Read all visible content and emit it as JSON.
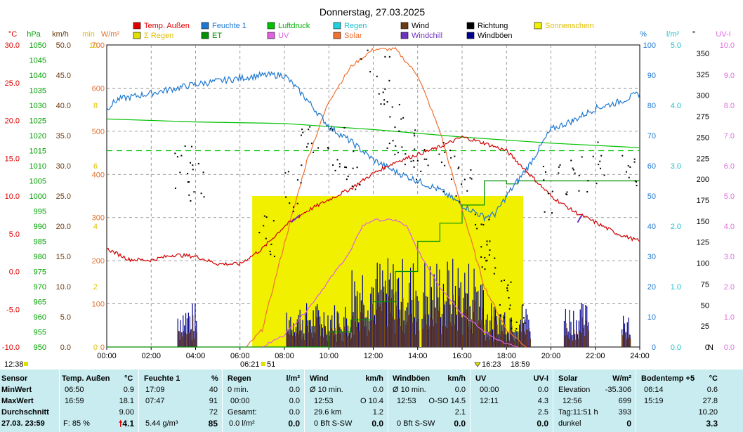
{
  "chart_data": {
    "type": "line",
    "title": "Donnerstag, 27.03.2025",
    "x_ticks": [
      "00:00",
      "02:00",
      "04:00",
      "06:00",
      "08:00",
      "10:00",
      "12:00",
      "14:00",
      "16:00",
      "18:00",
      "20:00",
      "22:00",
      "24:00"
    ],
    "legend": [
      {
        "name": "Temp. Außen",
        "color": "#e00000"
      },
      {
        "name": "Feuchte 1",
        "color": "#1e78d0"
      },
      {
        "name": "Luftdruck",
        "color": "#00c000"
      },
      {
        "name": "Regen",
        "color": "#20d0e0"
      },
      {
        "name": "Wind",
        "color": "#6b3a10"
      },
      {
        "name": "Richtung",
        "color": "#000000"
      },
      {
        "name": "Sonnenschein",
        "color": "#f0f000"
      },
      {
        "name": "Regen",
        "color": "#e0e000",
        "prefix": "Σ"
      },
      {
        "name": "ET",
        "color": "#009000"
      },
      {
        "name": "UV",
        "color": "#e060e0"
      },
      {
        "name": "Solar",
        "color": "#f07030"
      },
      {
        "name": "Windchill",
        "color": "#7030c0"
      },
      {
        "name": "Windböen",
        "color": "#000090"
      }
    ],
    "axes": {
      "temp": {
        "unit": "°C",
        "color": "#e00000",
        "ticks": [
          "30.0",
          "25.0",
          "20.0",
          "15.0",
          "10.0",
          "5.0",
          "0.0",
          "-5.0",
          "-10.0"
        ],
        "min": -10,
        "max": 30
      },
      "pressure": {
        "unit": "hPa",
        "color": "#00a000",
        "ticks": [
          "1050",
          "1045",
          "1040",
          "1035",
          "1030",
          "1025",
          "1020",
          "1015",
          "1010",
          "1005",
          "1000",
          "995",
          "990",
          "985",
          "980",
          "975",
          "970",
          "965",
          "960",
          "955",
          "950"
        ],
        "min": 950,
        "max": 1050
      },
      "wind": {
        "unit": "km/h",
        "color": "#6b3a10",
        "ticks": [
          "50.0",
          "45.0",
          "40.0",
          "35.0",
          "30.0",
          "25.0",
          "20.0",
          "15.0",
          "10.0",
          "5.0",
          "0.0"
        ],
        "min": 0,
        "max": 50
      },
      "min": {
        "unit": "min",
        "color": "#e0c000",
        "ticks": [
          "10",
          "8",
          "6",
          "4",
          "2",
          "0"
        ],
        "min": 0,
        "max": 10
      },
      "solar": {
        "unit": "W/m²",
        "color": "#e07030",
        "ticks": [
          "700",
          "600",
          "500",
          "400",
          "300",
          "200",
          "100",
          "0"
        ],
        "min": 0,
        "max": 700
      },
      "humidity": {
        "unit": "%",
        "color": "#1e78d0",
        "ticks": [
          "100",
          "90",
          "80",
          "70",
          "60",
          "50",
          "40",
          "30",
          "20",
          "10",
          "0"
        ],
        "min": 0,
        "max": 100
      },
      "rain": {
        "unit": "l/m²",
        "color": "#20c0d0",
        "ticks": [
          "5.0",
          "4.0",
          "3.0",
          "2.0",
          "1.0",
          "0.0"
        ],
        "min": 0,
        "max": 5
      },
      "direction": {
        "unit": "°",
        "color": "#000000",
        "ticks": [
          "350",
          "325",
          "300",
          "275",
          "250",
          "225",
          "200",
          "175",
          "150",
          "125",
          "100",
          "75",
          "50",
          "25",
          "0"
        ],
        "north_label": "N",
        "min": 0,
        "max": 360
      },
      "uv": {
        "unit": "UV-I",
        "color": "#e070e0",
        "ticks": [
          "10.0",
          "9.0",
          "8.0",
          "7.0",
          "6.0",
          "5.0",
          "4.0",
          "3.0",
          "2.0",
          "1.0",
          "0.0"
        ],
        "min": 0,
        "max": 10
      }
    },
    "series": {
      "temperature": [
        [
          0,
          3.0
        ],
        [
          1,
          1.6
        ],
        [
          2,
          1.5
        ],
        [
          3,
          2.2
        ],
        [
          4,
          2.0
        ],
        [
          5,
          1.0
        ],
        [
          6,
          1.0
        ],
        [
          7,
          3.0
        ],
        [
          8,
          6.0
        ],
        [
          9,
          8.0
        ],
        [
          10,
          9.5
        ],
        [
          11,
          11.0
        ],
        [
          12,
          13.0
        ],
        [
          13,
          14.5
        ],
        [
          14,
          15.5
        ],
        [
          15,
          16.5
        ],
        [
          16,
          17.8
        ],
        [
          17,
          17.0
        ],
        [
          18,
          16.0
        ],
        [
          19,
          13.0
        ],
        [
          20,
          10.0
        ],
        [
          21,
          8.0
        ],
        [
          22,
          6.5
        ],
        [
          23,
          5.0
        ],
        [
          24,
          4.0
        ]
      ],
      "humidity": [
        [
          0,
          79
        ],
        [
          0.5,
          82
        ],
        [
          2,
          84
        ],
        [
          4,
          87
        ],
        [
          7,
          90
        ],
        [
          8,
          90
        ],
        [
          9,
          82
        ],
        [
          10,
          73
        ],
        [
          11,
          68
        ],
        [
          12,
          62
        ],
        [
          13,
          58
        ],
        [
          14,
          55
        ],
        [
          15,
          52
        ],
        [
          16,
          47
        ],
        [
          17,
          43
        ],
        [
          17.5,
          44
        ],
        [
          18,
          50
        ],
        [
          19,
          60
        ],
        [
          20,
          72
        ],
        [
          21,
          75
        ],
        [
          22,
          79
        ],
        [
          23,
          81
        ],
        [
          24,
          84
        ]
      ],
      "pressure": [
        [
          0,
          1025.5
        ],
        [
          4,
          1024.5
        ],
        [
          8,
          1024
        ],
        [
          12,
          1022
        ],
        [
          16,
          1019.5
        ],
        [
          20,
          1017.5
        ],
        [
          24,
          1016
        ]
      ],
      "pressure_avg": 1015,
      "solar": [
        [
          6.3,
          0
        ],
        [
          7,
          40
        ],
        [
          8,
          240
        ],
        [
          9,
          430
        ],
        [
          10,
          570
        ],
        [
          11,
          650
        ],
        [
          12,
          690
        ],
        [
          13,
          690
        ],
        [
          14,
          630
        ],
        [
          15,
          500
        ],
        [
          16,
          320
        ],
        [
          17,
          140
        ],
        [
          18,
          40
        ],
        [
          18.9,
          0
        ]
      ],
      "uv": [
        [
          7,
          0
        ],
        [
          8,
          0.4
        ],
        [
          9,
          1.2
        ],
        [
          10,
          2.2
        ],
        [
          11,
          3.2
        ],
        [
          11.5,
          4.0
        ],
        [
          12,
          4.2
        ],
        [
          13,
          4.2
        ],
        [
          13.5,
          4.0
        ],
        [
          14,
          3.2
        ],
        [
          15,
          2.0
        ],
        [
          16,
          1.1
        ],
        [
          17,
          0.5
        ],
        [
          18,
          0.1
        ],
        [
          18.5,
          0
        ]
      ],
      "et": [
        [
          0,
          0
        ],
        [
          9,
          0
        ],
        [
          10,
          0.25
        ],
        [
          11,
          0.45
        ],
        [
          12,
          0.75
        ],
        [
          13,
          1.25
        ],
        [
          14,
          1.75
        ],
        [
          15,
          2.05
        ],
        [
          16,
          2.35
        ],
        [
          17,
          2.75
        ],
        [
          18,
          2.7
        ],
        [
          18.5,
          2.75
        ],
        [
          24,
          2.75
        ]
      ],
      "sunshine": [
        [
          6.55,
          18.75,
          5
        ]
      ],
      "wind_segments": [
        [
          3.2,
          4.1
        ],
        [
          8.1,
          14.1
        ],
        [
          14.2,
          19.1
        ],
        [
          20.6,
          21.7
        ],
        [
          23.2,
          23.6
        ]
      ],
      "direction_samples": [
        [
          3.4,
          220
        ],
        [
          4.0,
          200
        ],
        [
          7.2,
          130
        ],
        [
          8.4,
          190
        ],
        [
          9.1,
          250
        ],
        [
          10.3,
          240
        ],
        [
          11.0,
          215
        ],
        [
          11.8,
          350
        ],
        [
          12.5,
          320
        ],
        [
          13.0,
          260
        ],
        [
          13.5,
          245
        ],
        [
          14.2,
          230
        ],
        [
          15.3,
          215
        ],
        [
          16.1,
          200
        ],
        [
          16.8,
          130
        ],
        [
          17.2,
          100
        ],
        [
          17.8,
          60
        ],
        [
          18.4,
          50
        ],
        [
          20.0,
          190
        ],
        [
          21.0,
          205
        ],
        [
          22.0,
          215
        ],
        [
          23.5,
          215
        ]
      ],
      "windchill_segments": [
        [
          8.3,
          8.7
        ],
        [
          21.2,
          21.4
        ]
      ]
    },
    "bottom_markers": [
      {
        "label": "12:38",
        "color": "#e0e000"
      },
      {
        "label": "06:21",
        "color": "#000000"
      },
      {
        "label": "51",
        "color": "#000000"
      },
      {
        "label": "16:23",
        "color": "#000000"
      },
      {
        "label": "18:59",
        "color": "#000000"
      }
    ]
  },
  "stats": {
    "rowlabels": [
      "Sensor",
      "MinWert",
      "MaxWert",
      "Durchschnitt",
      "27.03. 23:59"
    ],
    "temp": {
      "title": "Temp. Außen",
      "unit": "°C",
      "min_time": "06:50",
      "min": "0.9",
      "max_time": "16:59",
      "max": "18.1",
      "avg": "9.00",
      "feels": "F: 85 %",
      "current": "4.1"
    },
    "hum": {
      "title": "Feuchte 1",
      "unit": "%",
      "min_time": "17:09",
      "min": "40",
      "max_time": "07:47",
      "max": "91",
      "avg": "72",
      "abs": "5.44 g/m³",
      "current": "85"
    },
    "rain": {
      "title": "Regen",
      "unit": "l/m²",
      "r1_label": "0 min.",
      "r1": "0.0",
      "r2_label": "00:00",
      "r2": "0.0",
      "r3_label": "Gesamt:",
      "r3": "0.0",
      "r4_label": "0.0 l/m²",
      "current": "0.0"
    },
    "wind": {
      "title": "Wind",
      "unit": "km/h",
      "r1_label": "Ø 10 min.",
      "r1": "0.0",
      "r2_time": "12:53",
      "r2_dir": "O 10.4",
      "r3_label": "29.6 km",
      "r3": "1.2",
      "r4_label": "0 Bft S-SW",
      "current": "0.0"
    },
    "gust": {
      "title": "Windböen",
      "unit": "km/h",
      "r1_label": "Ø 10 min.",
      "r1": "0.0",
      "r2_time": "12:53",
      "r2": "O-SO 14.5",
      "r3": "2.1",
      "r4_label": "0 Bft S-SW",
      "current": "0.0"
    },
    "uv": {
      "title": "UV",
      "unit": "UV-I",
      "r1_time": "00:00",
      "r1": "0.0",
      "r2_time": "12:11",
      "r2": "4.3",
      "r3": "2.5",
      "current": "0.0"
    },
    "solar": {
      "title": "Solar",
      "unit": "W/m²",
      "r1_label": "Elevation",
      "r1": "-35.306",
      "r2_time": "12:56",
      "r2": "699",
      "r3_label": "Tag:11:51 h",
      "r3": "393",
      "r4_label": "dunkel",
      "current": "0"
    },
    "soil": {
      "title": "Bodentemp +5",
      "unit": "°C",
      "r1_time": "06:14",
      "r1": "0.6",
      "r2_time": "15:19",
      "r2": "27.8",
      "r3": "10.20",
      "current": "3.3"
    }
  }
}
